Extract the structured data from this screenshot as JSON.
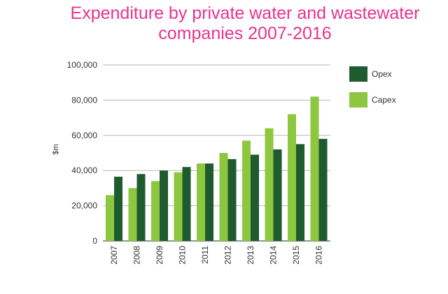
{
  "chart_data": {
    "type": "bar",
    "title": "Expenditure by private water and wastewater companies 2007-2016",
    "title_lines": [
      "Expenditure by private water and wastewater",
      "companies 2007-2016"
    ],
    "xlabel": "",
    "ylabel": "$m",
    "categories": [
      "2007",
      "2008",
      "2009",
      "2010",
      "2011",
      "2012",
      "2013",
      "2014",
      "2015",
      "2016"
    ],
    "series": [
      {
        "name": "Capex",
        "color": "#8dc63f",
        "values": [
          26000,
          30000,
          34000,
          39000,
          44000,
          50000,
          57000,
          64000,
          72000,
          82000
        ]
      },
      {
        "name": "Opex",
        "color": "#1e5b2f",
        "values": [
          36500,
          38000,
          40000,
          42000,
          44000,
          46500,
          49000,
          52000,
          55000,
          58000
        ]
      }
    ],
    "legend_order": [
      "Opex",
      "Capex"
    ],
    "legend_position": "right",
    "ylim": [
      0,
      100000
    ],
    "yticks": [
      0,
      20000,
      40000,
      60000,
      80000,
      100000
    ],
    "ytick_labels": [
      "0",
      "20,000",
      "40,000",
      "60,000",
      "80,000",
      "100,000"
    ],
    "grid": true,
    "title_color": "#e8338f"
  }
}
